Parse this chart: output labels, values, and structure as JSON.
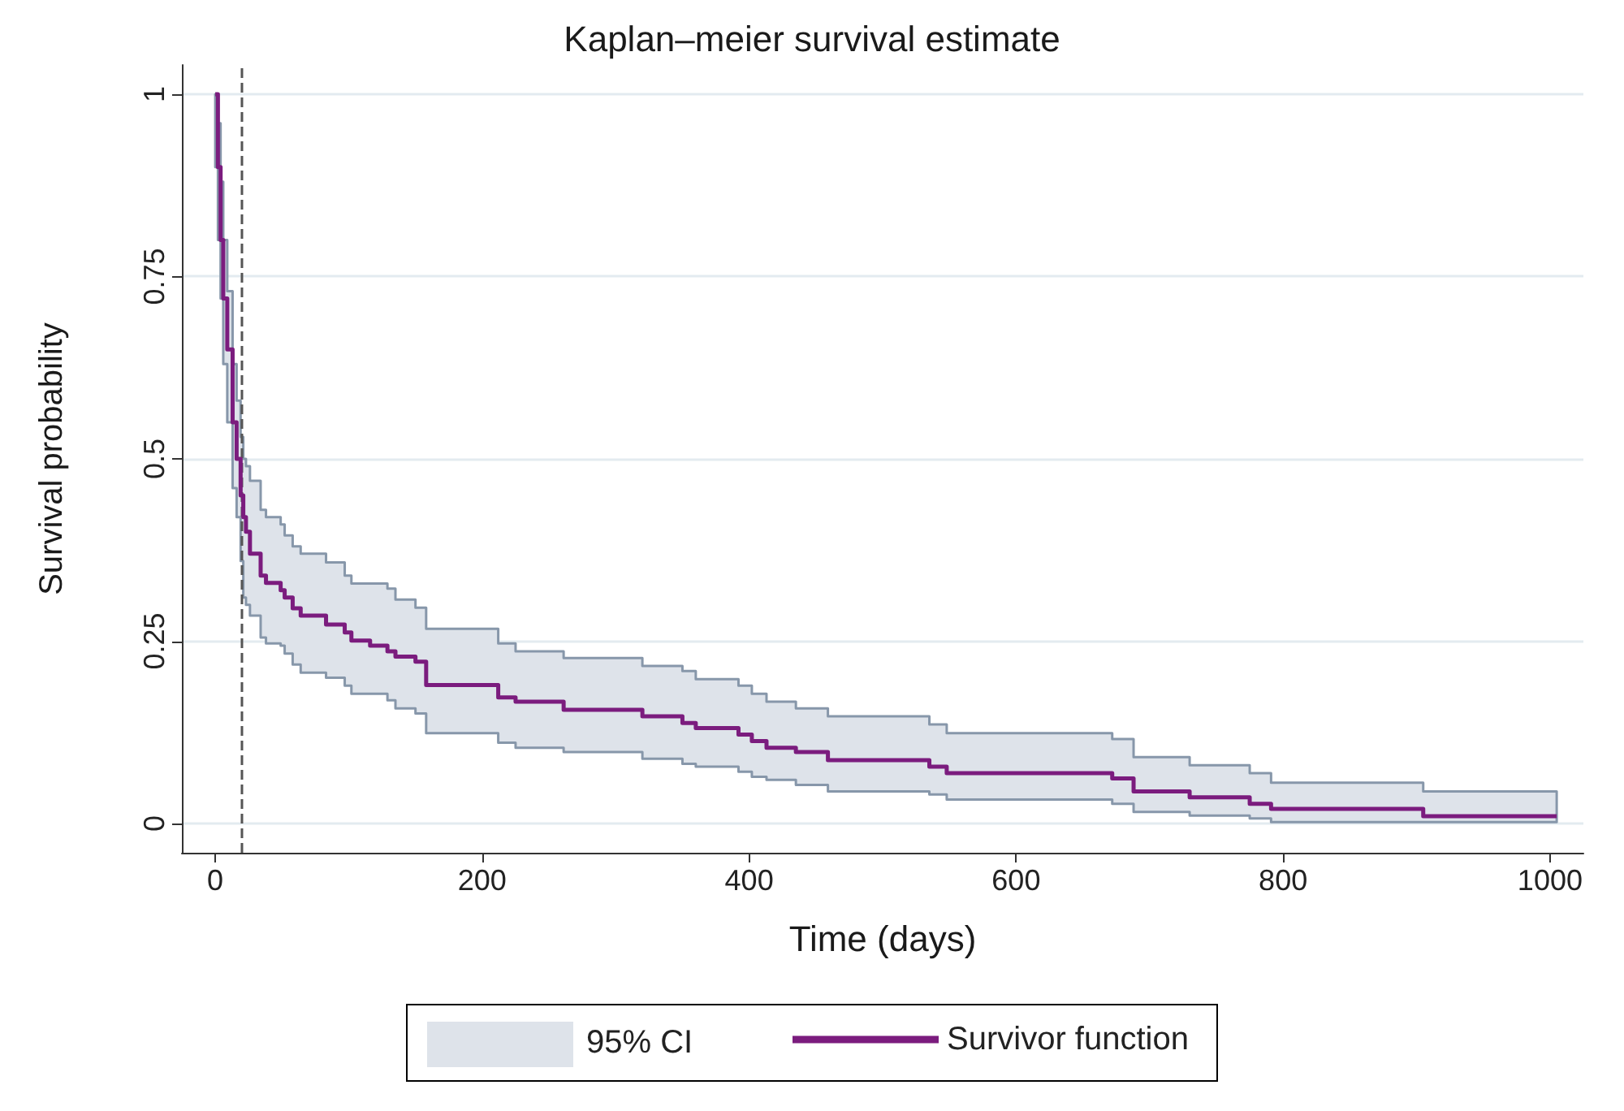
{
  "chart_data": {
    "type": "step",
    "title": "Kaplan–meier survival estimate",
    "xlabel": "Time (days)",
    "ylabel": "Survival probability",
    "x": [
      0,
      2,
      4,
      6,
      9,
      13,
      16,
      19,
      21,
      23,
      26,
      34,
      38,
      49,
      52,
      58,
      64,
      83,
      97,
      102,
      116,
      129,
      135,
      150,
      158,
      212,
      225,
      261,
      320,
      350,
      360,
      392,
      402,
      413,
      435,
      459,
      535,
      548,
      672,
      688,
      730,
      775,
      791,
      905,
      1005
    ],
    "series": [
      {
        "name": "Survivor function",
        "color": "#7b1c7e",
        "lower": [
          0.9,
          0.8,
          0.72,
          0.63,
          0.55,
          0.46,
          0.42,
          0.36,
          0.31,
          0.3,
          0.285,
          0.255,
          0.247,
          0.244,
          0.233,
          0.218,
          0.207,
          0.2,
          0.189,
          0.178,
          0.178,
          0.169,
          0.158,
          0.151,
          0.124,
          0.111,
          0.104,
          0.098,
          0.089,
          0.082,
          0.078,
          0.071,
          0.064,
          0.06,
          0.053,
          0.044,
          0.04,
          0.033,
          0.027,
          0.016,
          0.011,
          0.007,
          0.002,
          0.002,
          0.002
        ],
        "upper": [
          1,
          0.96,
          0.88,
          0.8,
          0.73,
          0.63,
          0.58,
          0.53,
          0.5,
          0.49,
          0.47,
          0.43,
          0.42,
          0.41,
          0.395,
          0.38,
          0.37,
          0.358,
          0.34,
          0.329,
          0.329,
          0.322,
          0.307,
          0.296,
          0.267,
          0.247,
          0.236,
          0.227,
          0.216,
          0.209,
          0.198,
          0.189,
          0.178,
          0.167,
          0.158,
          0.147,
          0.136,
          0.124,
          0.116,
          0.091,
          0.08,
          0.069,
          0.056,
          0.044,
          0.044
        ],
        "values": [
          1,
          0.9,
          0.8,
          0.72,
          0.65,
          0.55,
          0.5,
          0.45,
          0.42,
          0.4,
          0.37,
          0.34,
          0.33,
          0.32,
          0.31,
          0.295,
          0.285,
          0.273,
          0.262,
          0.251,
          0.244,
          0.236,
          0.229,
          0.222,
          0.19,
          0.173,
          0.167,
          0.156,
          0.147,
          0.138,
          0.131,
          0.122,
          0.113,
          0.104,
          0.098,
          0.087,
          0.078,
          0.069,
          0.062,
          0.044,
          0.036,
          0.027,
          0.02,
          0.01,
          0.01
        ]
      }
    ],
    "xlim": [
      -25,
      1025
    ],
    "xticks": [
      0,
      200,
      400,
      600,
      800,
      1000
    ],
    "ylim": [
      -0.04,
      1.04
    ],
    "yticks": [
      0,
      0.25,
      0.5,
      0.75,
      1
    ],
    "annotations": [
      "95% CI"
    ],
    "grid": "y",
    "legend": "bottom",
    "marker": "none",
    "ref_lines": [
      {
        "axis": "x",
        "value": 20,
        "color": "#555555",
        "line_style": "dashed"
      }
    ]
  }
}
